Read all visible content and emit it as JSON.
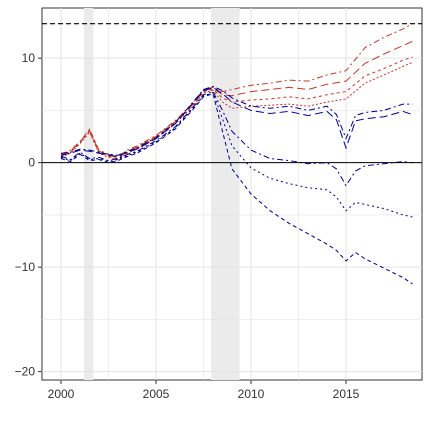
{
  "chart_data": {
    "type": "line",
    "xlim": [
      1999.0,
      2019.0
    ],
    "ylim": [
      -20.8,
      14.8
    ],
    "x_ticks": [
      2000,
      2005,
      2010,
      2015
    ],
    "y_ticks": [
      -20,
      -10,
      0,
      10
    ],
    "x_tick_labels": [
      "2000",
      "2005",
      "2010",
      "2015"
    ],
    "y_tick_labels": [
      "−20",
      "−10",
      "0",
      "10"
    ],
    "grid": true,
    "recession_bands": [
      [
        2001.2,
        2001.7
      ],
      [
        2007.9,
        2009.4
      ]
    ],
    "hline_zero": 0,
    "hline_dashed": 13.3,
    "colors": {
      "red": "#c0392b",
      "blue": "#00008b",
      "band": "#ebebeb",
      "grid": "#e3e3e3"
    },
    "series": [
      {
        "color": "red",
        "dash": "6,3,2,3",
        "x": [
          2000,
          2000.5,
          2001,
          2001.5,
          2002,
          2002.5,
          2003,
          2003.5,
          2004,
          2005,
          2006,
          2007,
          2007.5,
          2008,
          2008.5,
          2009,
          2010,
          2011,
          2012,
          2013,
          2014,
          2015,
          2016,
          2017,
          2018,
          2018.5
        ],
        "y": [
          0.8,
          1.2,
          2.0,
          3.2,
          1.2,
          0.8,
          0.6,
          1.2,
          1.6,
          2.6,
          4.0,
          5.8,
          7.0,
          7.2,
          6.8,
          7.0,
          7.4,
          7.6,
          7.9,
          7.8,
          8.4,
          8.8,
          11.0,
          12.0,
          12.8,
          13.3
        ]
      },
      {
        "color": "red",
        "dash": "8,4",
        "x": [
          2000,
          2000.5,
          2001,
          2001.5,
          2002,
          2002.5,
          2003,
          2003.5,
          2004,
          2005,
          2006,
          2007,
          2007.5,
          2008,
          2008.5,
          2009,
          2010,
          2011,
          2012,
          2013,
          2014,
          2015,
          2016,
          2017,
          2018,
          2018.5
        ],
        "y": [
          0.7,
          1.1,
          2.0,
          3.1,
          1.1,
          0.7,
          0.5,
          1.1,
          1.5,
          2.5,
          3.9,
          5.7,
          6.9,
          7.1,
          6.5,
          6.4,
          6.8,
          7.0,
          7.2,
          7.0,
          7.5,
          7.8,
          9.5,
          10.4,
          11.2,
          11.6
        ]
      },
      {
        "color": "red",
        "dash": "3,3",
        "x": [
          2000,
          2000.5,
          2001,
          2001.5,
          2002,
          2002.5,
          2003,
          2003.5,
          2004,
          2005,
          2006,
          2007,
          2007.5,
          2008,
          2008.5,
          2009,
          2010,
          2011,
          2012,
          2013,
          2014,
          2015,
          2016,
          2017,
          2018,
          2018.5
        ],
        "y": [
          0.6,
          1.0,
          1.9,
          3.0,
          1.0,
          0.6,
          0.4,
          1.0,
          1.4,
          2.4,
          3.8,
          5.6,
          6.8,
          7.0,
          6.2,
          5.8,
          6.0,
          6.1,
          6.3,
          6.1,
          6.5,
          6.8,
          8.3,
          9.0,
          9.8,
          10.1
        ]
      },
      {
        "color": "red",
        "dash": "2,2",
        "x": [
          2000,
          2000.5,
          2001,
          2001.5,
          2002,
          2002.5,
          2003,
          2003.5,
          2004,
          2005,
          2006,
          2007,
          2007.5,
          2008,
          2008.5,
          2009,
          2010,
          2011,
          2012,
          2013,
          2014,
          2015,
          2016,
          2017,
          2018,
          2018.5
        ],
        "y": [
          0.5,
          0.9,
          1.8,
          2.9,
          0.9,
          0.5,
          0.3,
          0.9,
          1.3,
          2.3,
          3.7,
          5.5,
          6.7,
          6.9,
          5.8,
          5.2,
          5.4,
          5.5,
          5.6,
          5.4,
          5.8,
          6.1,
          7.6,
          8.4,
          9.2,
          9.6
        ]
      },
      {
        "color": "blue",
        "dash": "6,3,2,3",
        "x": [
          2000,
          2000.5,
          2001,
          2001.5,
          2002,
          2002.5,
          2003,
          2003.5,
          2004,
          2005,
          2006,
          2007,
          2007.5,
          2008,
          2008.5,
          2009,
          2010,
          2011,
          2012,
          2013,
          2014,
          2014.5,
          2015,
          2015.5,
          2016,
          2017,
          2018,
          2018.5
        ],
        "y": [
          0.9,
          1.0,
          1.3,
          1.2,
          1.0,
          0.8,
          0.7,
          1.1,
          1.4,
          2.4,
          3.8,
          5.9,
          7.0,
          7.3,
          6.9,
          6.2,
          5.4,
          5.2,
          5.4,
          5.0,
          5.4,
          4.6,
          2.3,
          4.5,
          4.8,
          5.0,
          5.6,
          5.6
        ]
      },
      {
        "color": "blue",
        "dash": "8,4",
        "x": [
          2000,
          2000.5,
          2001,
          2001.5,
          2002,
          2002.5,
          2003,
          2003.5,
          2004,
          2005,
          2006,
          2007,
          2007.5,
          2008,
          2008.5,
          2009,
          2010,
          2011,
          2012,
          2013,
          2014,
          2014.5,
          2015,
          2015.5,
          2016,
          2017,
          2018,
          2018.5
        ],
        "y": [
          0.7,
          0.9,
          1.2,
          1.1,
          0.9,
          0.7,
          0.6,
          1.0,
          1.3,
          2.3,
          3.7,
          5.8,
          6.9,
          7.2,
          6.6,
          5.8,
          5.0,
          4.7,
          4.9,
          4.5,
          4.9,
          4.1,
          1.4,
          4.0,
          4.2,
          4.4,
          4.9,
          4.6
        ]
      },
      {
        "color": "blue",
        "dash": "6,3,2,3",
        "x": [
          2000,
          2000.5,
          2001,
          2001.5,
          2002,
          2002.5,
          2003,
          2003.5,
          2004,
          2005,
          2006,
          2007,
          2007.5,
          2008,
          2008.5,
          2009,
          2010,
          2011,
          2012,
          2013,
          2014,
          2014.5,
          2015,
          2015.5,
          2016,
          2017,
          2018,
          2018.5
        ],
        "y": [
          0.6,
          0.3,
          1.0,
          0.4,
          0.5,
          0.2,
          0.4,
          0.8,
          1.1,
          2.1,
          3.4,
          5.4,
          6.5,
          6.8,
          5.0,
          3.0,
          1.2,
          0.4,
          0.2,
          -0.1,
          0.0,
          -0.6,
          -2.2,
          -0.8,
          -0.3,
          -0.1,
          0.1,
          0.0
        ]
      },
      {
        "color": "blue",
        "dash": "2,3",
        "x": [
          2000,
          2000.5,
          2001,
          2001.5,
          2002,
          2002.5,
          2003,
          2003.5,
          2004,
          2005,
          2006,
          2007,
          2007.5,
          2008,
          2008.5,
          2009,
          2010,
          2011,
          2012,
          2013,
          2014,
          2014.5,
          2015,
          2015.5,
          2016,
          2017,
          2018,
          2018.5
        ],
        "y": [
          0.5,
          0.2,
          0.9,
          0.3,
          0.4,
          0.1,
          0.3,
          0.7,
          1.0,
          2.0,
          3.3,
          5.3,
          6.4,
          6.7,
          4.2,
          1.6,
          -0.5,
          -1.5,
          -2.0,
          -2.4,
          -2.6,
          -3.3,
          -4.6,
          -3.8,
          -4.0,
          -4.4,
          -5.0,
          -5.2
        ]
      },
      {
        "color": "blue",
        "dash": "4,3",
        "x": [
          2000,
          2000.5,
          2001,
          2001.5,
          2002,
          2002.5,
          2003,
          2003.5,
          2004,
          2005,
          2006,
          2007,
          2007.5,
          2008,
          2008.5,
          2009,
          2010,
          2011,
          2012,
          2013,
          2014,
          2014.5,
          2015,
          2015.5,
          2016,
          2017,
          2018,
          2018.5
        ],
        "y": [
          0.4,
          0.1,
          0.8,
          0.2,
          0.3,
          0.0,
          0.2,
          0.6,
          0.9,
          1.9,
          3.2,
          5.2,
          6.3,
          6.6,
          3.0,
          -0.6,
          -3.0,
          -4.6,
          -5.8,
          -6.8,
          -7.8,
          -8.4,
          -9.4,
          -8.6,
          -9.2,
          -10.1,
          -11.0,
          -11.6
        ]
      }
    ]
  }
}
